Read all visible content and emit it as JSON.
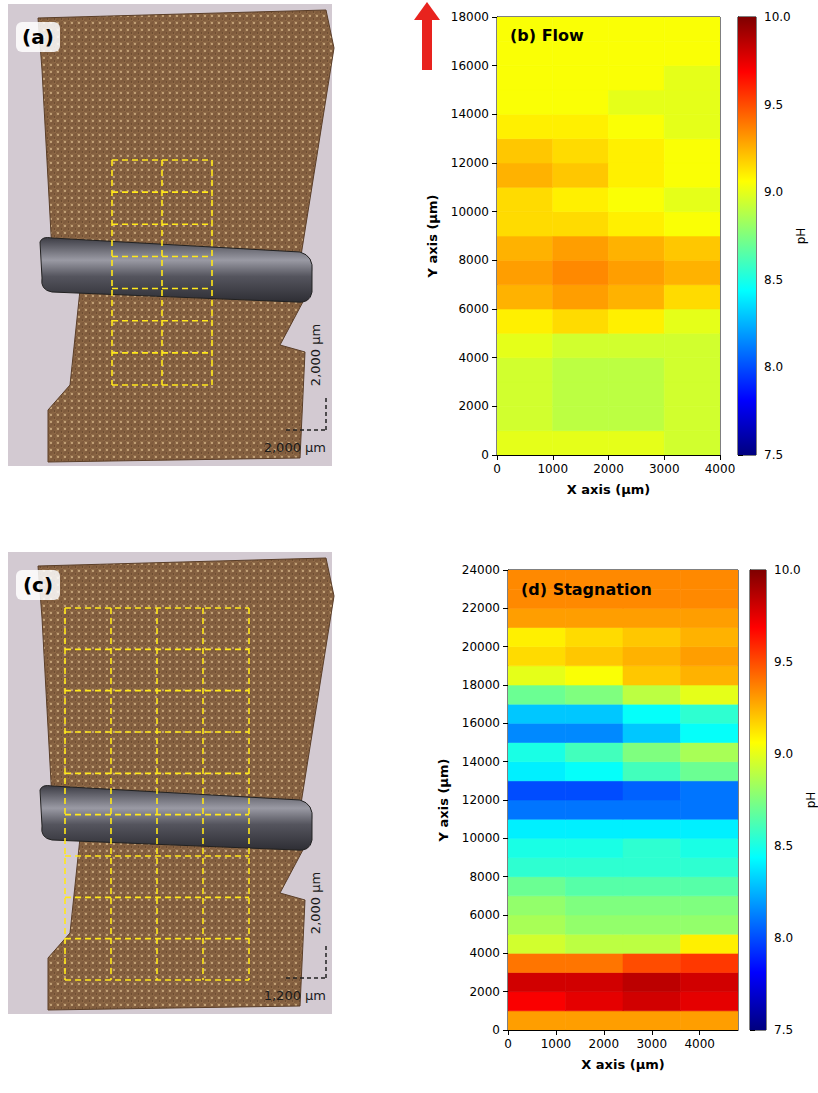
{
  "chart_data": [
    {
      "type": "heatmap",
      "title": "(b) Flow",
      "x_label": "X axis (µm)",
      "y_label": "Y axis (µm)",
      "xlim": [
        0,
        4000
      ],
      "ylim": [
        0,
        18000
      ],
      "xticks": [
        0,
        1000,
        2000,
        3000,
        4000
      ],
      "yticks": [
        0,
        2000,
        4000,
        6000,
        8000,
        10000,
        12000,
        14000,
        16000,
        18000
      ],
      "grid": false,
      "x_edges": [
        0,
        1000,
        2000,
        3000,
        4000
      ],
      "y_edges": [
        0,
        1000,
        2000,
        3000,
        4000,
        5000,
        6000,
        7000,
        8000,
        9000,
        10000,
        11000,
        12000,
        13000,
        14000,
        15000,
        16000,
        17000,
        18000
      ],
      "values": [
        [
          9.0,
          9.0,
          9.0,
          8.95
        ],
        [
          8.95,
          8.9,
          8.9,
          8.95
        ],
        [
          8.95,
          8.9,
          8.9,
          8.95
        ],
        [
          8.95,
          8.9,
          8.9,
          8.95
        ],
        [
          9.0,
          8.95,
          8.95,
          8.95
        ],
        [
          9.1,
          9.15,
          9.1,
          9.0
        ],
        [
          9.25,
          9.3,
          9.25,
          9.15
        ],
        [
          9.3,
          9.35,
          9.3,
          9.25
        ],
        [
          9.25,
          9.3,
          9.25,
          9.2
        ],
        [
          9.15,
          9.15,
          9.1,
          9.05
        ],
        [
          9.15,
          9.1,
          9.05,
          9.0
        ],
        [
          9.25,
          9.2,
          9.1,
          9.05
        ],
        [
          9.2,
          9.15,
          9.1,
          9.05
        ],
        [
          9.1,
          9.1,
          9.05,
          9.0
        ],
        [
          9.05,
          9.05,
          9.0,
          9.0
        ],
        [
          9.05,
          9.05,
          9.05,
          9.0
        ],
        [
          9.05,
          9.05,
          9.05,
          9.05
        ],
        [
          9.05,
          9.05,
          9.05,
          9.05
        ]
      ],
      "colorbar": {
        "label": "pH",
        "range": [
          7.5,
          10
        ],
        "ticks": [
          7.5,
          {
            "value": 8,
            "label": "8.0"
          },
          8.5,
          {
            "value": 9,
            "label": "9.0"
          },
          9.5,
          {
            "value": 10,
            "label": "10.0"
          }
        ]
      }
    },
    {
      "type": "heatmap",
      "title": "(d) Stagnation",
      "x_label": "X axis (µm)",
      "y_label": "Y axis (µm)",
      "xlim": [
        0,
        4800
      ],
      "ylim": [
        0,
        24000
      ],
      "xticks": [
        0,
        1000,
        2000,
        3000,
        4000
      ],
      "yticks": [
        0,
        2000,
        4000,
        6000,
        8000,
        10000,
        12000,
        14000,
        16000,
        18000,
        20000,
        22000,
        24000
      ],
      "grid": false,
      "x_edges": [
        0,
        1200,
        2400,
        3600,
        4800
      ],
      "y_edges": [
        0,
        1000,
        2000,
        3000,
        4000,
        5000,
        6000,
        7000,
        8000,
        9000,
        10000,
        11000,
        12000,
        13000,
        14000,
        15000,
        16000,
        17000,
        18000,
        19000,
        20000,
        21000,
        22000,
        23000,
        24000
      ],
      "values": [
        [
          9.3,
          9.3,
          9.3,
          9.3
        ],
        [
          9.7,
          9.75,
          9.8,
          9.75
        ],
        [
          9.8,
          9.8,
          9.85,
          9.8
        ],
        [
          9.4,
          9.4,
          9.5,
          9.55
        ],
        [
          8.95,
          8.9,
          8.9,
          9.1
        ],
        [
          8.85,
          8.8,
          8.8,
          8.8
        ],
        [
          8.8,
          8.75,
          8.75,
          8.75
        ],
        [
          8.7,
          8.65,
          8.65,
          8.65
        ],
        [
          8.55,
          8.55,
          8.55,
          8.55
        ],
        [
          8.5,
          8.5,
          8.55,
          8.5
        ],
        [
          8.4,
          8.4,
          8.4,
          8.4
        ],
        [
          8.1,
          8.1,
          8.1,
          8.1
        ],
        [
          8.0,
          8.0,
          8.05,
          8.1
        ],
        [
          8.4,
          8.45,
          8.6,
          8.7
        ],
        [
          8.5,
          8.6,
          8.75,
          8.85
        ],
        [
          8.15,
          8.15,
          8.3,
          8.45
        ],
        [
          8.3,
          8.3,
          8.45,
          8.55
        ],
        [
          8.7,
          8.75,
          8.9,
          9.0
        ],
        [
          9.0,
          9.05,
          9.2,
          9.25
        ],
        [
          9.15,
          9.2,
          9.25,
          9.3
        ],
        [
          9.1,
          9.15,
          9.2,
          9.25
        ],
        [
          9.3,
          9.3,
          9.3,
          9.3
        ],
        [
          9.35,
          9.35,
          9.35,
          9.35
        ],
        [
          9.35,
          9.35,
          9.35,
          9.35
        ]
      ],
      "colorbar": {
        "label": "pH",
        "range": [
          7.5,
          10
        ],
        "ticks": [
          7.5,
          {
            "value": 8,
            "label": "8.0"
          },
          8.5,
          {
            "value": 9,
            "label": "9.0"
          },
          9.5,
          {
            "value": 10,
            "label": "10.0"
          }
        ]
      }
    }
  ],
  "photos": [
    {
      "label": "(a)",
      "sampling_grid": {
        "columns": 2,
        "rows": 7
      },
      "scale_bar": {
        "vertical": "2,000 µm",
        "horizontal": "2,000 µm"
      }
    },
    {
      "label": "(c)",
      "sampling_grid": {
        "columns": 4,
        "rows": 9
      },
      "scale_bar": {
        "vertical": "2,000 µm",
        "horizontal": "1,200 µm"
      }
    }
  ]
}
